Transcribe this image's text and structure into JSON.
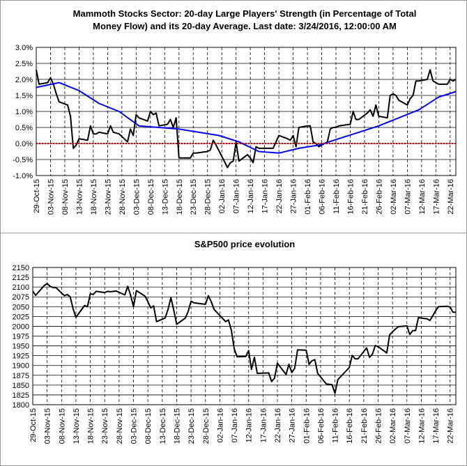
{
  "charts": [
    {
      "title_line1": "Mammoth Stocks Sector: 20-day Large Players' Strength (in Percentage of Total",
      "title_line2": "Money Flow) and its 20-day Average. Last date: 3/24/2016, 12:00:00 AM"
    },
    {
      "title": "S&P500 price evolution"
    }
  ],
  "chart_data": [
    {
      "type": "line",
      "title": "Mammoth Stocks Sector: 20-day Large Players' Strength (in Percentage of Total Money Flow) and its 20-day Average. Last date: 3/24/2016, 12:00:00 AM",
      "xlabel": "",
      "ylabel": "",
      "ylim": [
        -1.0,
        3.0
      ],
      "yticks": [
        "-1.0%",
        "-0.5%",
        "0.0%",
        "0.5%",
        "1.0%",
        "1.5%",
        "2.0%",
        "2.5%",
        "3.0%"
      ],
      "x_tick_labels": [
        "29-Oct-15",
        "03-Nov-15",
        "08-Nov-15",
        "13-Nov-15",
        "18-Nov-15",
        "23-Nov-15",
        "28-Nov-15",
        "03-Dec-15",
        "08-Dec-15",
        "13-Dec-15",
        "18-Dec-15",
        "23-Dec-15",
        "28-Dec-15",
        "02-Jan-16",
        "07-Jan-16",
        "12-Jan-16",
        "17-Jan-16",
        "22-Jan-16",
        "27-Jan-16",
        "01-Feb-16",
        "06-Feb-16",
        "11-Feb-16",
        "16-Feb-16",
        "21-Feb-16",
        "26-Feb-16",
        "02-Mar-16",
        "07-Mar-16",
        "12-Mar-16",
        "17-Mar-16",
        "22-Mar-16"
      ],
      "grid": "vertical dashed at each x tick; horizontal solid at 0.5% steps",
      "series": [
        {
          "color": "#000000",
          "x": [
            "2015-10-29",
            "2015-10-30",
            "2015-11-02",
            "2015-11-03",
            "2015-11-04",
            "2015-11-05",
            "2015-11-06",
            "2015-11-09",
            "2015-11-10",
            "2015-11-11",
            "2015-11-12",
            "2015-11-13",
            "2015-11-16",
            "2015-11-17",
            "2015-11-18",
            "2015-11-19",
            "2015-11-20",
            "2015-11-23",
            "2015-11-24",
            "2015-11-25",
            "2015-11-27",
            "2015-11-30",
            "2015-12-01",
            "2015-12-02",
            "2015-12-03",
            "2015-12-04",
            "2015-12-07",
            "2015-12-08",
            "2015-12-09",
            "2015-12-10",
            "2015-12-11",
            "2015-12-14",
            "2015-12-15",
            "2015-12-16",
            "2015-12-17",
            "2015-12-18",
            "2015-12-21",
            "2015-12-22",
            "2015-12-23",
            "2015-12-24",
            "2015-12-28",
            "2015-12-29",
            "2015-12-30",
            "2015-12-31",
            "2016-01-04",
            "2016-01-05",
            "2016-01-06",
            "2016-01-07",
            "2016-01-08",
            "2016-01-11",
            "2016-01-12",
            "2016-01-13",
            "2016-01-14",
            "2016-01-15",
            "2016-01-19",
            "2016-01-20",
            "2016-01-21",
            "2016-01-22",
            "2016-01-25",
            "2016-01-26",
            "2016-01-27",
            "2016-01-28",
            "2016-01-29",
            "2016-02-01",
            "2016-02-02",
            "2016-02-03",
            "2016-02-04",
            "2016-02-05",
            "2016-02-08",
            "2016-02-09",
            "2016-02-10",
            "2016-02-11",
            "2016-02-12",
            "2016-02-16",
            "2016-02-17",
            "2016-02-18",
            "2016-02-19",
            "2016-02-22",
            "2016-02-23",
            "2016-02-24",
            "2016-02-25",
            "2016-02-26",
            "2016-02-29",
            "2016-03-01",
            "2016-03-02",
            "2016-03-03",
            "2016-03-04",
            "2016-03-07",
            "2016-03-08",
            "2016-03-09",
            "2016-03-10",
            "2016-03-11",
            "2016-03-14",
            "2016-03-15",
            "2016-03-16",
            "2016-03-17",
            "2016-03-18",
            "2016-03-21",
            "2016-03-22",
            "2016-03-23",
            "2016-03-24"
          ],
          "values": [
            2.3,
            1.85,
            1.9,
            2.05,
            1.85,
            1.55,
            1.3,
            1.2,
            0.85,
            -0.15,
            -0.05,
            0.15,
            0.1,
            0.55,
            0.3,
            0.3,
            0.35,
            0.3,
            0.55,
            0.35,
            0.3,
            0.05,
            0.45,
            0.25,
            0.9,
            0.8,
            0.7,
            1.0,
            0.9,
            0.95,
            0.55,
            0.6,
            0.75,
            0.5,
            0.8,
            -0.45,
            -0.45,
            -0.45,
            -0.3,
            -0.3,
            -0.25,
            -0.2,
            0.1,
            -0.05,
            -0.75,
            -0.6,
            -0.55,
            0.05,
            -0.55,
            -0.35,
            -0.45,
            -0.6,
            -0.1,
            -0.15,
            -0.15,
            -0.15,
            0.05,
            0.25,
            0.15,
            0.1,
            0.25,
            -0.1,
            0.5,
            0.55,
            0.55,
            0.05,
            0.0,
            -0.1,
            0.05,
            0.45,
            0.5,
            0.5,
            0.55,
            0.6,
            1.0,
            0.75,
            0.75,
            0.95,
            1.05,
            0.85,
            1.2,
            0.85,
            0.8,
            1.5,
            1.55,
            1.5,
            1.35,
            1.2,
            1.4,
            1.5,
            1.95,
            1.95,
            2.0,
            2.3,
            1.95,
            1.9,
            1.85,
            1.85,
            2.0,
            1.95,
            2.0
          ]
        },
        {
          "color": "#0000ff",
          "x": [
            "2015-10-29",
            "2015-11-06",
            "2015-11-13",
            "2015-11-20",
            "2015-11-27",
            "2015-12-04",
            "2015-12-11",
            "2015-12-18",
            "2015-12-25",
            "2016-01-01",
            "2016-01-08",
            "2016-01-15",
            "2016-01-22",
            "2016-01-29",
            "2016-02-05",
            "2016-02-12",
            "2016-02-19",
            "2016-02-26",
            "2016-03-04",
            "2016-03-11",
            "2016-03-18",
            "2016-03-24"
          ],
          "values": [
            1.75,
            1.9,
            1.65,
            1.25,
            1.0,
            0.55,
            0.5,
            0.45,
            0.35,
            0.25,
            0.05,
            -0.25,
            -0.3,
            -0.15,
            -0.05,
            0.15,
            0.35,
            0.55,
            0.8,
            1.05,
            1.45,
            1.62
          ]
        },
        {
          "color": "#cc0000",
          "x": [
            "2015-10-29",
            "2016-03-24"
          ],
          "values": [
            0.0,
            0.0
          ]
        }
      ]
    },
    {
      "type": "line",
      "title": "S&P500 price evolution",
      "xlabel": "",
      "ylabel": "",
      "ylim": [
        1800,
        2150
      ],
      "yticks": [
        "1800",
        "1825",
        "1850",
        "1875",
        "1900",
        "1925",
        "1950",
        "1975",
        "2000",
        "2025",
        "2050",
        "2075",
        "2100",
        "2125",
        "2150"
      ],
      "x_tick_labels": [
        "29-Oct-15",
        "03-Nov-15",
        "08-Nov-15",
        "13-Nov-15",
        "18-Nov-15",
        "23-Nov-15",
        "28-Nov-15",
        "03-Dec-15",
        "08-Dec-15",
        "13-Dec-15",
        "18-Dec-15",
        "23-Dec-15",
        "28-Dec-15",
        "02-Jan-16",
        "07-Jan-16",
        "12-Jan-16",
        "17-Jan-16",
        "22-Jan-16",
        "27-Jan-16",
        "01-Feb-16",
        "06-Feb-16",
        "11-Feb-16",
        "16-Feb-16",
        "21-Feb-16",
        "26-Feb-16",
        "02-Mar-16",
        "07-Mar-16",
        "12-Mar-16",
        "17-Mar-16",
        "22-Mar-16"
      ],
      "grid": "vertical dashed at each x tick; horizontal solid at 25-point steps",
      "series": [
        {
          "color": "#000000",
          "x": [
            "2015-10-29",
            "2015-10-30",
            "2015-11-02",
            "2015-11-03",
            "2015-11-04",
            "2015-11-05",
            "2015-11-06",
            "2015-11-09",
            "2015-11-10",
            "2015-11-11",
            "2015-11-12",
            "2015-11-13",
            "2015-11-16",
            "2015-11-17",
            "2015-11-18",
            "2015-11-19",
            "2015-11-20",
            "2015-11-23",
            "2015-11-24",
            "2015-11-25",
            "2015-11-27",
            "2015-11-30",
            "2015-12-01",
            "2015-12-02",
            "2015-12-03",
            "2015-12-04",
            "2015-12-07",
            "2015-12-08",
            "2015-12-09",
            "2015-12-10",
            "2015-12-11",
            "2015-12-14",
            "2015-12-15",
            "2015-12-16",
            "2015-12-17",
            "2015-12-18",
            "2015-12-21",
            "2015-12-22",
            "2015-12-23",
            "2015-12-24",
            "2015-12-28",
            "2015-12-29",
            "2015-12-30",
            "2015-12-31",
            "2016-01-04",
            "2016-01-05",
            "2016-01-06",
            "2016-01-07",
            "2016-01-08",
            "2016-01-11",
            "2016-01-12",
            "2016-01-13",
            "2016-01-14",
            "2016-01-15",
            "2016-01-19",
            "2016-01-20",
            "2016-01-21",
            "2016-01-22",
            "2016-01-25",
            "2016-01-26",
            "2016-01-27",
            "2016-01-28",
            "2016-01-29",
            "2016-02-01",
            "2016-02-02",
            "2016-02-03",
            "2016-02-04",
            "2016-02-05",
            "2016-02-08",
            "2016-02-09",
            "2016-02-10",
            "2016-02-11",
            "2016-02-12",
            "2016-02-16",
            "2016-02-17",
            "2016-02-18",
            "2016-02-19",
            "2016-02-22",
            "2016-02-23",
            "2016-02-24",
            "2016-02-25",
            "2016-02-26",
            "2016-02-29",
            "2016-03-01",
            "2016-03-02",
            "2016-03-03",
            "2016-03-04",
            "2016-03-07",
            "2016-03-08",
            "2016-03-09",
            "2016-03-10",
            "2016-03-11",
            "2016-03-14",
            "2016-03-15",
            "2016-03-16",
            "2016-03-17",
            "2016-03-18",
            "2016-03-21",
            "2016-03-22",
            "2016-03-23",
            "2016-03-24"
          ],
          "values": [
            2090,
            2079,
            2104,
            2109,
            2102,
            2099,
            2099,
            2078,
            2081,
            2075,
            2045,
            2023,
            2053,
            2050,
            2083,
            2081,
            2089,
            2086,
            2089,
            2088,
            2090,
            2080,
            2102,
            2079,
            2050,
            2091,
            2077,
            2063,
            2047,
            2052,
            2012,
            2021,
            2043,
            2073,
            2041,
            2005,
            2021,
            2038,
            2064,
            2060,
            2056,
            2078,
            2063,
            2043,
            2012,
            2016,
            1990,
            1943,
            1922,
            1923,
            1938,
            1890,
            1921,
            1880,
            1881,
            1859,
            1868,
            1906,
            1877,
            1903,
            1882,
            1893,
            1940,
            1939,
            1903,
            1912,
            1915,
            1880,
            1853,
            1852,
            1851,
            1829,
            1864,
            1895,
            1926,
            1917,
            1917,
            1945,
            1921,
            1929,
            1951,
            1948,
            1932,
            1978,
            1986,
            1993,
            1999,
            2001,
            1979,
            1989,
            1989,
            2022,
            2019,
            2015,
            2027,
            2040,
            2050,
            2051,
            2049,
            2036,
            2036
          ]
        }
      ]
    }
  ]
}
